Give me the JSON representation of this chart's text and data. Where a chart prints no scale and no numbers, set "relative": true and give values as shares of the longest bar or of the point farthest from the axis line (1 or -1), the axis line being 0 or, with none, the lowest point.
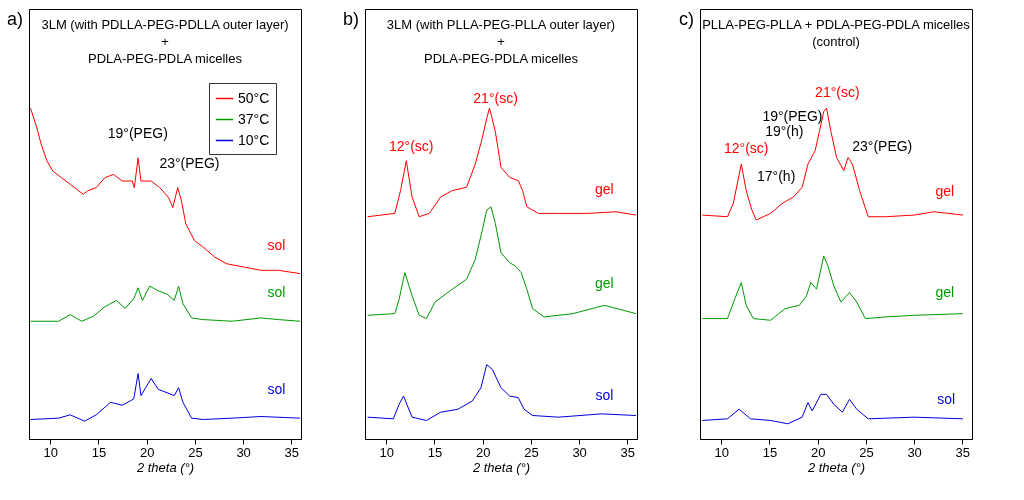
{
  "chart_data": [
    {
      "type": "line",
      "relative": true,
      "title": "3LM (with PDLLA-PEG-PDLLA outer layer)\n+\nPDLA-PEG-PDLA micelles",
      "xlabel": "2 theta (°)",
      "xlim": [
        7.8,
        36
      ],
      "xticks": [
        10,
        15,
        20,
        25,
        30,
        35
      ],
      "legend": "top right",
      "annotations": [
        "a)",
        "19°(PEG)",
        "23°(PEG)",
        "sol",
        "sol",
        "sol"
      ],
      "series": [
        {
          "name": "50°C",
          "color": "#ff0000",
          "x": [
            7.96,
            8.62,
            9.07,
            9.67,
            10.27,
            11.17,
            12.07,
            12.97,
            13.42,
            13.87,
            14.77,
            15.67,
            16.56,
            17.46,
            18.51,
            18.72,
            19.11,
            19.41,
            19.86,
            20.46,
            21.36,
            22.26,
            22.71,
            23.22,
            23.61,
            24.06,
            24.96,
            25.86,
            27.06,
            28.26,
            30.05,
            31.85,
            33.65,
            35.9
          ],
          "values": [
            1.0,
            0.94,
            0.89,
            0.84,
            0.81,
            0.79,
            0.77,
            0.75,
            0.74,
            0.75,
            0.76,
            0.79,
            0.8,
            0.78,
            0.78,
            0.76,
            0.85,
            0.78,
            0.78,
            0.78,
            0.76,
            0.73,
            0.7,
            0.76,
            0.72,
            0.65,
            0.6,
            0.58,
            0.55,
            0.53,
            0.52,
            0.51,
            0.51,
            0.5
          ]
        },
        {
          "name": "37°C",
          "color": "#009a00",
          "x": [
            7.96,
            10.87,
            12.07,
            13.27,
            14.47,
            15.67,
            16.86,
            17.76,
            18.66,
            19.11,
            19.56,
            20.31,
            21.21,
            22.11,
            22.86,
            23.31,
            23.76,
            24.66,
            25.86,
            28.86,
            31.85,
            33.65,
            35.9
          ],
          "values": [
            0.356,
            0.356,
            0.376,
            0.356,
            0.371,
            0.4,
            0.419,
            0.395,
            0.424,
            0.457,
            0.419,
            0.462,
            0.448,
            0.438,
            0.419,
            0.462,
            0.409,
            0.366,
            0.361,
            0.356,
            0.366,
            0.361,
            0.356
          ]
        },
        {
          "name": "10°C",
          "color": "#0000e0",
          "x": [
            7.96,
            10.87,
            12.07,
            13.57,
            14.77,
            16.26,
            17.46,
            18.66,
            19.11,
            19.41,
            20.46,
            21.21,
            22.11,
            22.86,
            23.31,
            23.76,
            24.66,
            25.86,
            28.86,
            31.85,
            35.9
          ],
          "values": [
            0.059,
            0.063,
            0.073,
            0.054,
            0.073,
            0.111,
            0.102,
            0.121,
            0.198,
            0.131,
            0.183,
            0.15,
            0.14,
            0.131,
            0.155,
            0.111,
            0.063,
            0.059,
            0.063,
            0.068,
            0.063
          ]
        }
      ]
    },
    {
      "type": "line",
      "relative": true,
      "title": "3LM (with PLLA-PEG-PLLA outer layer)\n+\nPDLA-PEG-PDLA micelles",
      "xlabel": "2 theta (°)",
      "xlim": [
        7.8,
        36
      ],
      "xticks": [
        10,
        15,
        20,
        25,
        30,
        35
      ],
      "annotations": [
        "b)",
        "12°(sc)",
        "21°(sc)",
        "gel",
        "gel",
        "sol"
      ],
      "series": [
        {
          "color": "#ff0000",
          "x": [
            8.07,
            10.89,
            11.49,
            12.08,
            12.68,
            13.42,
            14.46,
            15.65,
            16.85,
            18.33,
            19.23,
            19.97,
            20.42,
            20.71,
            21.31,
            21.9,
            22.8,
            23.69,
            24.14,
            24.58,
            25.77,
            27.86,
            30.83,
            33.81,
            35.89
          ],
          "values": [
            0.672,
            0.682,
            0.751,
            0.841,
            0.732,
            0.672,
            0.682,
            0.732,
            0.751,
            0.761,
            0.831,
            0.911,
            0.97,
            1.0,
            0.93,
            0.821,
            0.791,
            0.781,
            0.751,
            0.702,
            0.682,
            0.682,
            0.682,
            0.687,
            0.677
          ]
        },
        {
          "color": "#009a00",
          "x": [
            8.07,
            10.89,
            11.34,
            11.93,
            12.68,
            13.42,
            14.17,
            15.06,
            16.85,
            18.33,
            19.23,
            19.97,
            20.42,
            20.86,
            21.31,
            21.9,
            22.8,
            23.39,
            23.99,
            24.58,
            25.18,
            26.37,
            29.35,
            32.62,
            35.89
          ],
          "values": [
            0.374,
            0.379,
            0.423,
            0.503,
            0.433,
            0.374,
            0.364,
            0.414,
            0.453,
            0.483,
            0.543,
            0.632,
            0.692,
            0.702,
            0.652,
            0.563,
            0.533,
            0.523,
            0.503,
            0.453,
            0.394,
            0.369,
            0.379,
            0.404,
            0.379
          ]
        },
        {
          "color": "#0000e0",
          "x": [
            8.07,
            10.74,
            11.34,
            11.79,
            12.68,
            14.17,
            15.65,
            17.44,
            18.93,
            19.82,
            20.42,
            21.01,
            21.9,
            22.8,
            23.69,
            24.29,
            25.18,
            27.86,
            32.32,
            35.89
          ],
          "values": [
            0.066,
            0.061,
            0.105,
            0.13,
            0.066,
            0.056,
            0.081,
            0.09,
            0.115,
            0.155,
            0.225,
            0.21,
            0.155,
            0.13,
            0.125,
            0.09,
            0.071,
            0.066,
            0.076,
            0.071
          ]
        }
      ]
    },
    {
      "type": "line",
      "relative": true,
      "title": "PLLA-PEG-PLLA + PDLA-PEG-PDLA micelles\n(control)",
      "xlabel": "2 theta (°)",
      "xlim": [
        7.8,
        36
      ],
      "xticks": [
        10,
        15,
        20,
        25,
        30,
        35
      ],
      "annotations": [
        "c)",
        "12°(sc)",
        "21°(sc)",
        "19°(PEG)",
        "19°(h)",
        "23°(PEG)",
        "17°(h)",
        "gel",
        "gel",
        "sol"
      ],
      "series": [
        {
          "color": "#ff0000",
          "x": [
            8.04,
            10.65,
            11.25,
            12.08,
            12.59,
            13.18,
            13.63,
            15.12,
            16.31,
            17.5,
            18.39,
            18.99,
            19.73,
            20.18,
            20.63,
            20.92,
            21.37,
            21.96,
            22.71,
            23.15,
            23.6,
            24.35,
            25.24,
            27.02,
            30.0,
            32.08,
            35.06
          ],
          "values": [
            0.677,
            0.672,
            0.712,
            0.831,
            0.751,
            0.692,
            0.662,
            0.682,
            0.712,
            0.732,
            0.761,
            0.831,
            0.871,
            0.93,
            0.99,
            1.0,
            0.93,
            0.851,
            0.811,
            0.851,
            0.831,
            0.751,
            0.672,
            0.672,
            0.677,
            0.687,
            0.677
          ]
        },
        {
          "color": "#009a00",
          "x": [
            8.04,
            10.65,
            11.4,
            12.08,
            12.59,
            13.33,
            15.12,
            16.61,
            18.1,
            18.84,
            19.29,
            19.88,
            20.63,
            21.07,
            21.67,
            22.41,
            23.3,
            24.05,
            24.94,
            27.02,
            30.0,
            35.06
          ],
          "values": [
            0.364,
            0.364,
            0.423,
            0.473,
            0.404,
            0.364,
            0.359,
            0.394,
            0.404,
            0.433,
            0.473,
            0.453,
            0.553,
            0.523,
            0.463,
            0.414,
            0.443,
            0.414,
            0.364,
            0.369,
            0.374,
            0.379
          ]
        },
        {
          "color": "#0000e0",
          "x": [
            8.04,
            10.65,
            11.85,
            13.04,
            15.12,
            16.9,
            18.39,
            18.99,
            19.43,
            20.33,
            20.92,
            21.67,
            22.56,
            23.3,
            24.05,
            25.24,
            30.0,
            35.06
          ],
          "values": [
            0.056,
            0.061,
            0.09,
            0.061,
            0.056,
            0.046,
            0.066,
            0.11,
            0.085,
            0.135,
            0.135,
            0.105,
            0.081,
            0.12,
            0.09,
            0.061,
            0.066,
            0.061
          ]
        }
      ]
    }
  ]
}
